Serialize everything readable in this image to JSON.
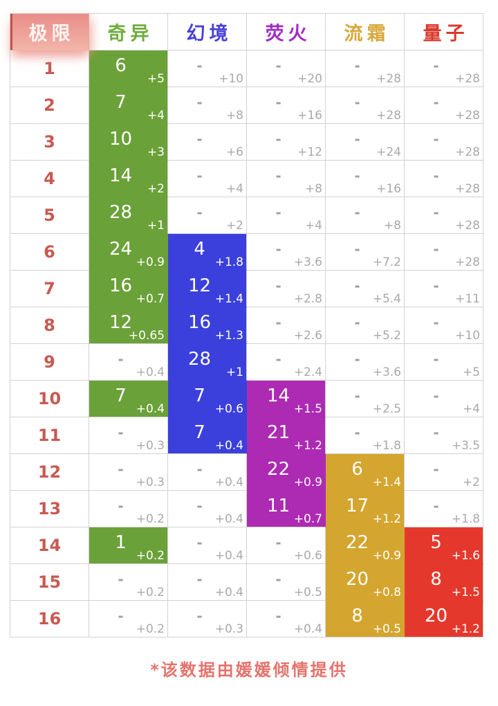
{
  "chart_data": {
    "type": "table",
    "title": "",
    "corner_label": "极限",
    "columns": [
      {
        "label": "奇异",
        "text_color": "#6fad3d",
        "palette_key": "green"
      },
      {
        "label": "幻境",
        "text_color": "#4741d9",
        "palette_key": "blue"
      },
      {
        "label": "荧火",
        "text_color": "#a32cc4",
        "palette_key": "magenta"
      },
      {
        "label": "流霜",
        "text_color": "#d7a83a",
        "palette_key": "gold"
      },
      {
        "label": "量子",
        "text_color": "#d93a2d",
        "palette_key": "red"
      }
    ],
    "palette": {
      "green": "#6ba139",
      "blue": "#3b40dc",
      "magenta": "#ad2ab3",
      "gold": "#d4a52f",
      "red": "#e5382c"
    },
    "gridline_color": "#d2d2d2",
    "corner_colors": {
      "bg_top": "#e88e88",
      "bg_bottom": "#f2b4a9",
      "accent": "#c2524c"
    },
    "limit_number_color": "#c75a52",
    "rows": [
      {
        "limit": "1",
        "cells": [
          {
            "v": "6",
            "b": "+5",
            "c": "green"
          },
          {
            "v": "-",
            "b": "+10",
            "c": null
          },
          {
            "v": "-",
            "b": "+20",
            "c": null
          },
          {
            "v": "-",
            "b": "+28",
            "c": null
          },
          {
            "v": "-",
            "b": "+28",
            "c": null
          }
        ]
      },
      {
        "limit": "2",
        "cells": [
          {
            "v": "7",
            "b": "+4",
            "c": "green"
          },
          {
            "v": "-",
            "b": "+8",
            "c": null
          },
          {
            "v": "-",
            "b": "+16",
            "c": null
          },
          {
            "v": "-",
            "b": "+28",
            "c": null
          },
          {
            "v": "-",
            "b": "+28",
            "c": null
          }
        ]
      },
      {
        "limit": "3",
        "cells": [
          {
            "v": "10",
            "b": "+3",
            "c": "green"
          },
          {
            "v": "-",
            "b": "+6",
            "c": null
          },
          {
            "v": "-",
            "b": "+12",
            "c": null
          },
          {
            "v": "-",
            "b": "+24",
            "c": null
          },
          {
            "v": "-",
            "b": "+28",
            "c": null
          }
        ]
      },
      {
        "limit": "4",
        "cells": [
          {
            "v": "14",
            "b": "+2",
            "c": "green"
          },
          {
            "v": "-",
            "b": "+4",
            "c": null
          },
          {
            "v": "-",
            "b": "+8",
            "c": null
          },
          {
            "v": "-",
            "b": "+16",
            "c": null
          },
          {
            "v": "-",
            "b": "+28",
            "c": null
          }
        ]
      },
      {
        "limit": "5",
        "cells": [
          {
            "v": "28",
            "b": "+1",
            "c": "green"
          },
          {
            "v": "-",
            "b": "+2",
            "c": null
          },
          {
            "v": "-",
            "b": "+4",
            "c": null
          },
          {
            "v": "-",
            "b": "+8",
            "c": null
          },
          {
            "v": "-",
            "b": "+28",
            "c": null
          }
        ]
      },
      {
        "limit": "6",
        "cells": [
          {
            "v": "24",
            "b": "+0.9",
            "c": "green"
          },
          {
            "v": "4",
            "b": "+1.8",
            "c": "blue"
          },
          {
            "v": "-",
            "b": "+3.6",
            "c": null
          },
          {
            "v": "-",
            "b": "+7.2",
            "c": null
          },
          {
            "v": "-",
            "b": "+28",
            "c": null
          }
        ]
      },
      {
        "limit": "7",
        "cells": [
          {
            "v": "16",
            "b": "+0.7",
            "c": "green"
          },
          {
            "v": "12",
            "b": "+1.4",
            "c": "blue"
          },
          {
            "v": "-",
            "b": "+2.8",
            "c": null
          },
          {
            "v": "-",
            "b": "+5.4",
            "c": null
          },
          {
            "v": "-",
            "b": "+11",
            "c": null
          }
        ]
      },
      {
        "limit": "8",
        "cells": [
          {
            "v": "12",
            "b": "+0.65",
            "c": "green"
          },
          {
            "v": "16",
            "b": "+1.3",
            "c": "blue"
          },
          {
            "v": "-",
            "b": "+2.6",
            "c": null
          },
          {
            "v": "-",
            "b": "+5.2",
            "c": null
          },
          {
            "v": "-",
            "b": "+10",
            "c": null
          }
        ]
      },
      {
        "limit": "9",
        "cells": [
          {
            "v": "-",
            "b": "+0.4",
            "c": null
          },
          {
            "v": "28",
            "b": "+1",
            "c": "blue"
          },
          {
            "v": "-",
            "b": "+2.4",
            "c": null
          },
          {
            "v": "-",
            "b": "+3.6",
            "c": null
          },
          {
            "v": "-",
            "b": "+5",
            "c": null
          }
        ]
      },
      {
        "limit": "10",
        "cells": [
          {
            "v": "7",
            "b": "+0.4",
            "c": "green"
          },
          {
            "v": "7",
            "b": "+0.6",
            "c": "blue"
          },
          {
            "v": "14",
            "b": "+1.5",
            "c": "magenta"
          },
          {
            "v": "-",
            "b": "+2.5",
            "c": null
          },
          {
            "v": "-",
            "b": "+4",
            "c": null
          }
        ]
      },
      {
        "limit": "11",
        "cells": [
          {
            "v": "-",
            "b": "+0.3",
            "c": null
          },
          {
            "v": "7",
            "b": "+0.4",
            "c": "blue"
          },
          {
            "v": "21",
            "b": "+1.2",
            "c": "magenta"
          },
          {
            "v": "-",
            "b": "+1.8",
            "c": null
          },
          {
            "v": "-",
            "b": "+3.5",
            "c": null
          }
        ]
      },
      {
        "limit": "12",
        "cells": [
          {
            "v": "-",
            "b": "+0.3",
            "c": null
          },
          {
            "v": "-",
            "b": "+0.4",
            "c": null
          },
          {
            "v": "22",
            "b": "+0.9",
            "c": "magenta"
          },
          {
            "v": "6",
            "b": "+1.4",
            "c": "gold"
          },
          {
            "v": "-",
            "b": "+2",
            "c": null
          }
        ]
      },
      {
        "limit": "13",
        "cells": [
          {
            "v": "-",
            "b": "+0.2",
            "c": null
          },
          {
            "v": "-",
            "b": "+0.4",
            "c": null
          },
          {
            "v": "11",
            "b": "+0.7",
            "c": "magenta"
          },
          {
            "v": "17",
            "b": "+1.2",
            "c": "gold"
          },
          {
            "v": "-",
            "b": "+1.8",
            "c": null
          }
        ]
      },
      {
        "limit": "14",
        "cells": [
          {
            "v": "1",
            "b": "+0.2",
            "c": "green"
          },
          {
            "v": "-",
            "b": "+0.4",
            "c": null
          },
          {
            "v": "-",
            "b": "+0.6",
            "c": null
          },
          {
            "v": "22",
            "b": "+0.9",
            "c": "gold"
          },
          {
            "v": "5",
            "b": "+1.6",
            "c": "red"
          }
        ]
      },
      {
        "limit": "15",
        "cells": [
          {
            "v": "-",
            "b": "+0.2",
            "c": null
          },
          {
            "v": "-",
            "b": "+0.4",
            "c": null
          },
          {
            "v": "-",
            "b": "+0.5",
            "c": null
          },
          {
            "v": "20",
            "b": "+0.8",
            "c": "gold"
          },
          {
            "v": "8",
            "b": "+1.5",
            "c": "red"
          }
        ]
      },
      {
        "limit": "16",
        "cells": [
          {
            "v": "-",
            "b": "+0.2",
            "c": null
          },
          {
            "v": "-",
            "b": "+0.3",
            "c": null
          },
          {
            "v": "-",
            "b": "+0.4",
            "c": null
          },
          {
            "v": "8",
            "b": "+0.5",
            "c": "gold"
          },
          {
            "v": "20",
            "b": "+1.2",
            "c": "red"
          }
        ]
      }
    ],
    "footer_note": "*该数据由媛媛倾情提供"
  }
}
